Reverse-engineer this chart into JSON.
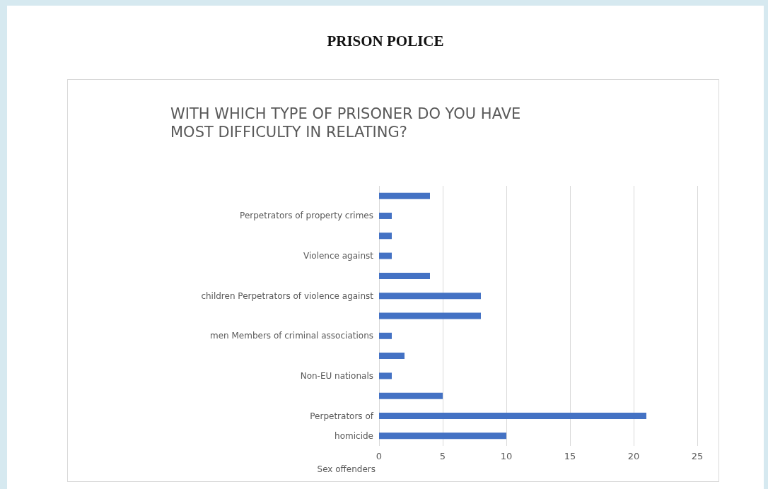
{
  "chart_data": {
    "type": "bar",
    "orientation": "horizontal",
    "title": "PRISON POLICE",
    "subtitle": "WITH WHICH TYPE OF PRISONER DO YOU HAVE MOST DIFFICULTY IN RELATING?",
    "categories": [
      null,
      "Perpetrators of property crimes",
      null,
      "Violence against",
      null,
      "children Perpetrators of violence against",
      null,
      "men Members of criminal associations",
      null,
      "Non-EU nationals",
      null,
      "Perpetrators of",
      "homicide"
    ],
    "values": [
      4,
      1,
      1,
      1,
      4,
      8,
      8,
      1,
      2,
      1,
      5,
      21,
      10
    ],
    "color": "#4472c4",
    "xlim": [
      0,
      25
    ],
    "xticks": [
      0,
      5,
      10,
      15,
      20,
      25
    ],
    "grid": "x",
    "annotations": [
      "Sex offenders"
    ]
  }
}
